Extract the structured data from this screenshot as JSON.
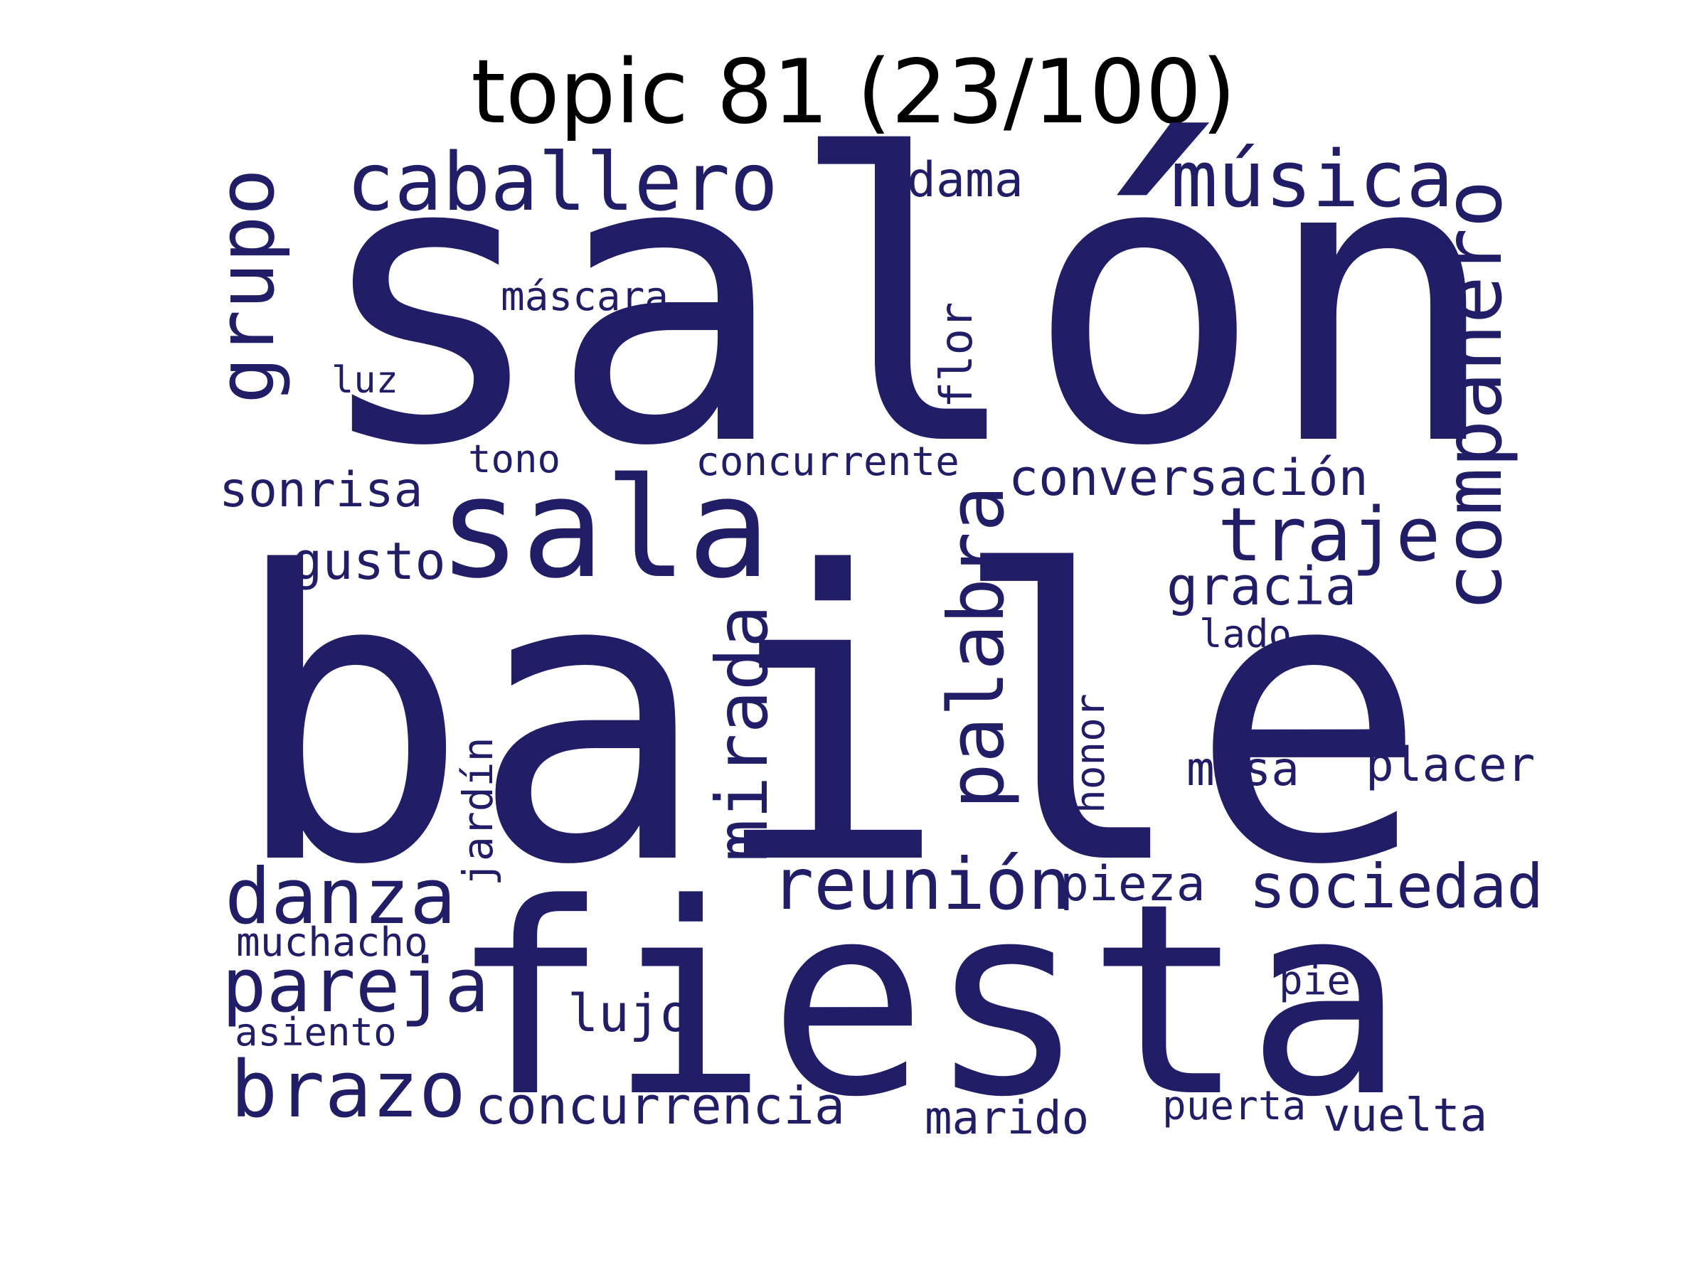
{
  "title": "topic 81 (23/100)",
  "word_color": "#211d66",
  "words": [
    {
      "id": "salon",
      "text": "salón"
    },
    {
      "id": "baile",
      "text": "baile"
    },
    {
      "id": "fiesta",
      "text": "fiesta"
    },
    {
      "id": "sala",
      "text": "sala"
    },
    {
      "id": "caballero",
      "text": "caballero"
    },
    {
      "id": "musica",
      "text": "música"
    },
    {
      "id": "dama",
      "text": "dama"
    },
    {
      "id": "grupo",
      "text": "grupo"
    },
    {
      "id": "companero",
      "text": "compañero"
    },
    {
      "id": "mascara",
      "text": "máscara"
    },
    {
      "id": "flor",
      "text": "flor"
    },
    {
      "id": "luz",
      "text": "luz"
    },
    {
      "id": "tono",
      "text": "tono"
    },
    {
      "id": "concurrente",
      "text": "concurrente"
    },
    {
      "id": "conversacion",
      "text": "conversación"
    },
    {
      "id": "sonrisa",
      "text": "sonrisa"
    },
    {
      "id": "traje",
      "text": "traje"
    },
    {
      "id": "gusto",
      "text": "gusto"
    },
    {
      "id": "gracia",
      "text": "gracia"
    },
    {
      "id": "lado",
      "text": "lado"
    },
    {
      "id": "palabra",
      "text": "palabra"
    },
    {
      "id": "mirada",
      "text": "mirada"
    },
    {
      "id": "honor",
      "text": "honor"
    },
    {
      "id": "mesa",
      "text": "mesa"
    },
    {
      "id": "placer",
      "text": "placer"
    },
    {
      "id": "jardin",
      "text": "jardín"
    },
    {
      "id": "danza",
      "text": "danza"
    },
    {
      "id": "reunion",
      "text": "reunión"
    },
    {
      "id": "pieza",
      "text": "pieza"
    },
    {
      "id": "sociedad",
      "text": "sociedad"
    },
    {
      "id": "muchacho",
      "text": "muchacho"
    },
    {
      "id": "pareja",
      "text": "pareja"
    },
    {
      "id": "lujo",
      "text": "lujo"
    },
    {
      "id": "pie",
      "text": "pie"
    },
    {
      "id": "asiento",
      "text": "asiento"
    },
    {
      "id": "brazo",
      "text": "brazo"
    },
    {
      "id": "concurrencia",
      "text": "concurrencia"
    },
    {
      "id": "marido",
      "text": "marido"
    },
    {
      "id": "puerta",
      "text": "puerta"
    },
    {
      "id": "vuelta",
      "text": "vuelta"
    }
  ]
}
